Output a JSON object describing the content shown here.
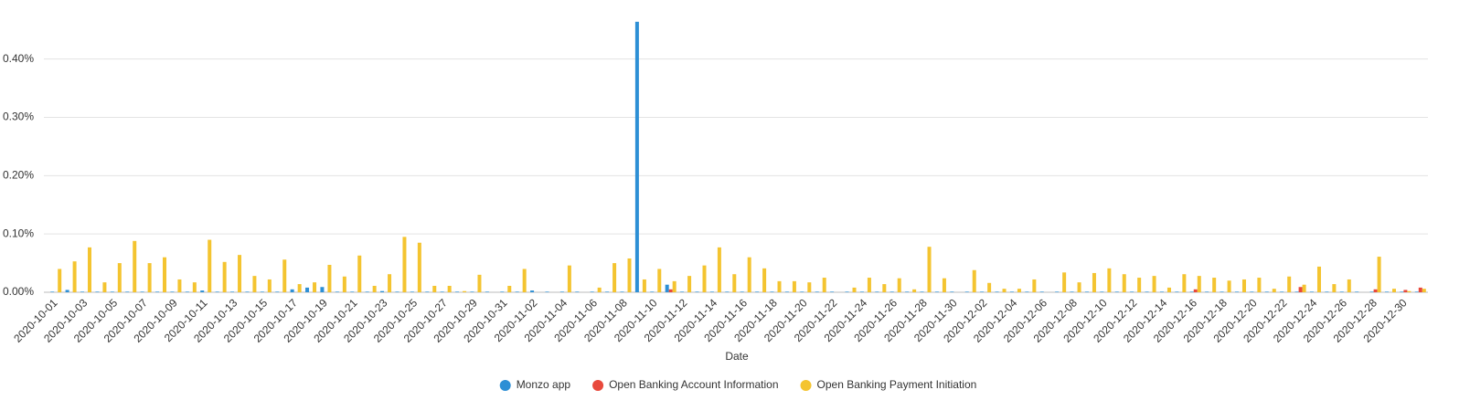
{
  "chart_data": {
    "type": "bar",
    "x_label": "Date",
    "categories": [
      "2020-10-01",
      null,
      "2020-10-03",
      null,
      "2020-10-05",
      null,
      "2020-10-07",
      null,
      "2020-10-09",
      null,
      "2020-10-11",
      null,
      "2020-10-13",
      null,
      "2020-10-15",
      null,
      "2020-10-17",
      null,
      "2020-10-19",
      null,
      "2020-10-21",
      null,
      "2020-10-23",
      null,
      "2020-10-25",
      null,
      "2020-10-27",
      null,
      "2020-10-29",
      null,
      "2020-10-31",
      null,
      "2020-11-02",
      null,
      "2020-11-04",
      null,
      "2020-11-06",
      null,
      "2020-11-08",
      null,
      "2020-11-10",
      null,
      "2020-11-12",
      null,
      "2020-11-14",
      null,
      "2020-11-16",
      null,
      "2020-11-18",
      null,
      "2020-11-20",
      null,
      "2020-11-22",
      null,
      "2020-11-24",
      null,
      "2020-11-26",
      null,
      "2020-11-28",
      null,
      "2020-11-30",
      null,
      "2020-12-02",
      null,
      "2020-12-04",
      null,
      "2020-12-06",
      null,
      "2020-12-08",
      null,
      "2020-12-10",
      null,
      "2020-12-12",
      null,
      "2020-12-14",
      null,
      "2020-12-16",
      null,
      "2020-12-18",
      null,
      "2020-12-20",
      null,
      "2020-12-22",
      null,
      "2020-12-24",
      null,
      "2020-12-26",
      null,
      "2020-12-28",
      null,
      "2020-12-30",
      null
    ],
    "series": [
      {
        "name": "Monzo app",
        "color": "#2d8fd5",
        "values": [
          0.001,
          0.004,
          0.001,
          0.001,
          0.001,
          0.001,
          0.001,
          0.001,
          0.001,
          0.001,
          0.003,
          0.001,
          0.001,
          0.001,
          0.001,
          0.001,
          0.005,
          0.008,
          0.009,
          0.001,
          0.001,
          0.001,
          0.002,
          0.001,
          0.001,
          0.001,
          0.001,
          0.001,
          0.001,
          0.001,
          0.001,
          0.001,
          0.003,
          0.001,
          0.001,
          0.001,
          0.001,
          0.001,
          0.001,
          0.464,
          0.001,
          0.013,
          0.001,
          0.001,
          0.001,
          0.001,
          0.001,
          0.001,
          0.001,
          0.001,
          0.001,
          0.001,
          0.001,
          0.001,
          0.001,
          0.001,
          0.001,
          0.001,
          0.001,
          0.001,
          0.001,
          0.001,
          0.001,
          0.001,
          0.001,
          0.001,
          0.001,
          0.001,
          0.001,
          0.001,
          0.001,
          0.001,
          0.001,
          0.001,
          0.001,
          0.001,
          0.001,
          0.001,
          0.001,
          0.001,
          0.001,
          0.001,
          0.001,
          0.001,
          0.001,
          0.001,
          0.001,
          0.001,
          0.001,
          0.001,
          0.001,
          0.001
        ]
      },
      {
        "name": "Open Banking Account Information",
        "color": "#e8493c",
        "values": [
          0,
          0,
          0,
          0,
          0,
          0,
          0,
          0,
          0,
          0,
          0,
          0,
          0,
          0,
          0,
          0,
          0,
          0,
          0,
          0,
          0,
          0,
          0,
          0,
          0,
          0,
          0,
          0,
          0,
          0,
          0,
          0,
          0,
          0,
          0,
          0,
          0,
          0,
          0,
          0,
          0,
          0.005,
          0,
          0,
          0,
          0,
          0,
          0,
          0,
          0,
          0,
          0,
          0,
          0,
          0,
          0,
          0,
          0,
          0,
          0,
          0,
          0,
          0,
          0,
          0,
          0,
          0,
          0,
          0,
          0,
          0,
          0,
          0,
          0,
          0,
          0,
          0.005,
          0,
          0,
          0,
          0,
          0,
          0,
          0.009,
          0,
          0,
          0,
          0,
          0.005,
          0,
          0.004,
          0.008
        ]
      },
      {
        "name": "Open Banking Payment Initiation",
        "color": "#f4c430",
        "values": [
          0.04,
          0.053,
          0.077,
          0.017,
          0.05,
          0.088,
          0.05,
          0.06,
          0.022,
          0.017,
          0.09,
          0.052,
          0.064,
          0.028,
          0.022,
          0.056,
          0.014,
          0.017,
          0.047,
          0.027,
          0.063,
          0.011,
          0.031,
          0.095,
          0.085,
          0.011,
          0.011,
          0.002,
          0.03,
          0,
          0.011,
          0.04,
          0,
          0,
          0.046,
          0,
          0.008,
          0.05,
          0.058,
          0.022,
          0.04,
          0.019,
          0.028,
          0.046,
          0.077,
          0.031,
          0.06,
          0.041,
          0.019,
          0.019,
          0.017,
          0.025,
          0,
          0.008,
          0.025,
          0.014,
          0.024,
          0.005,
          0.078,
          0.024,
          0,
          0.038,
          0.016,
          0.006,
          0.006,
          0.022,
          0,
          0.034,
          0.017,
          0.033,
          0.041,
          0.031,
          0.025,
          0.028,
          0.008,
          0.031,
          0.028,
          0.025,
          0.02,
          0.022,
          0.025,
          0.006,
          0.027,
          0.013,
          0.044,
          0.014,
          0.022,
          0,
          0.061,
          0.006,
          0.002,
          0.006
        ]
      }
    ],
    "ylim": [
      0,
      0.47
    ],
    "yticks": [
      {
        "value": 0,
        "label": "0.00%"
      },
      {
        "value": 0.1,
        "label": "0.10%"
      },
      {
        "value": 0.2,
        "label": "0.20%"
      },
      {
        "value": 0.3,
        "label": "0.30%"
      },
      {
        "value": 0.4,
        "label": "0.40%"
      }
    ],
    "grid": true,
    "legend": "bottom"
  }
}
